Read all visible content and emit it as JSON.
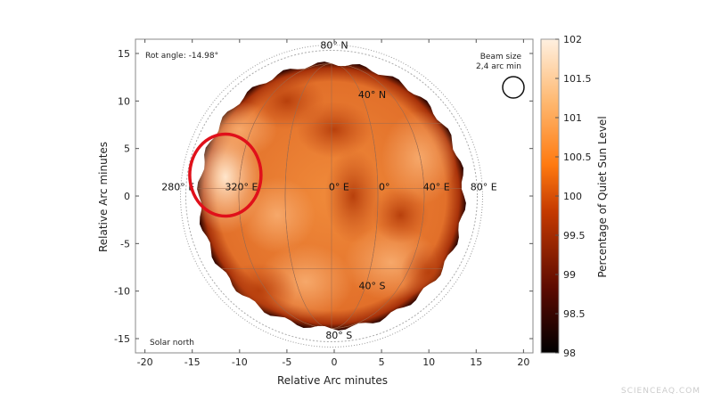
{
  "chart_data": {
    "type": "heatmap",
    "xlabel": "Relative Arc minutes",
    "ylabel": "Relative Arc minutes",
    "xlim": [
      -21,
      21
    ],
    "ylim": [
      -16.5,
      16.5
    ],
    "xticks": [
      -20,
      -15,
      -10,
      -5,
      0,
      5,
      10,
      15,
      20
    ],
    "yticks": [
      15,
      10,
      5,
      0,
      -5,
      -10,
      -15
    ],
    "colorbar": {
      "label": "Percentage of Quiet Sun Level",
      "range": [
        98,
        102
      ],
      "ticks": [
        "102",
        "101.5",
        "101",
        "100.5",
        "100",
        "99.5",
        "99",
        "98.5",
        "98"
      ],
      "colors": [
        "#000000",
        "#5a0a00",
        "#c43a00",
        "#ff7a10",
        "#ffb870",
        "#fff0e0"
      ]
    },
    "annotations": {
      "rot_angle": "Rot angle: -14.98°",
      "beam_size_line1": "Beam size",
      "beam_size_line2": "2,4 arc min",
      "solar_north": "Solar north"
    },
    "grid_labels": [
      "80° N",
      "40° N",
      "280° E",
      "320° E",
      "0° E",
      "0°",
      "40° E",
      "80° E",
      "40° S",
      "80° S"
    ],
    "highlight": {
      "shape": "ellipse",
      "color": "#e0101a",
      "center": [
        -11.5,
        2.2
      ]
    },
    "disk_radius_arcmin": 14
  },
  "watermark": "SCIENCEAQ.COM"
}
